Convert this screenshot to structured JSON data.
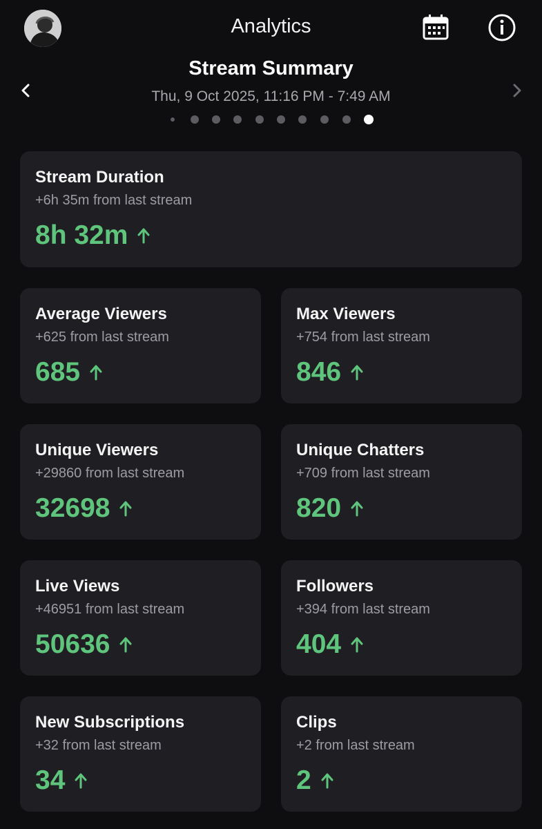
{
  "header": {
    "title": "Analytics",
    "avatar_icon": "user-avatar",
    "calendar_icon": "calendar-icon",
    "info_icon": "info-icon"
  },
  "summary": {
    "title": "Stream Summary",
    "date_range": "Thu, 9 Oct 2025, 11:16 PM - 7:49 AM",
    "pager": {
      "count": 10,
      "active_index": 9
    }
  },
  "colors": {
    "background": "#0e0e10",
    "card": "#1f1f23",
    "positive": "#5fc47c",
    "muted": "#9c9ca2"
  },
  "cards": [
    {
      "title": "Stream Duration",
      "change": "+6h 35m from last stream",
      "value": "8h 32m",
      "trend": "up"
    },
    {
      "title": "Average Viewers",
      "change": "+625 from last stream",
      "value": "685",
      "trend": "up"
    },
    {
      "title": "Max Viewers",
      "change": "+754 from last stream",
      "value": "846",
      "trend": "up"
    },
    {
      "title": "Unique Viewers",
      "change": "+29860 from last stream",
      "value": "32698",
      "trend": "up"
    },
    {
      "title": "Unique Chatters",
      "change": "+709 from last stream",
      "value": "820",
      "trend": "up"
    },
    {
      "title": "Live Views",
      "change": "+46951 from last stream",
      "value": "50636",
      "trend": "up"
    },
    {
      "title": "Followers",
      "change": "+394 from last stream",
      "value": "404",
      "trend": "up"
    },
    {
      "title": "New Subscriptions",
      "change": "+32 from last stream",
      "value": "34",
      "trend": "up"
    },
    {
      "title": "Clips",
      "change": "+2 from last stream",
      "value": "2",
      "trend": "up"
    }
  ]
}
